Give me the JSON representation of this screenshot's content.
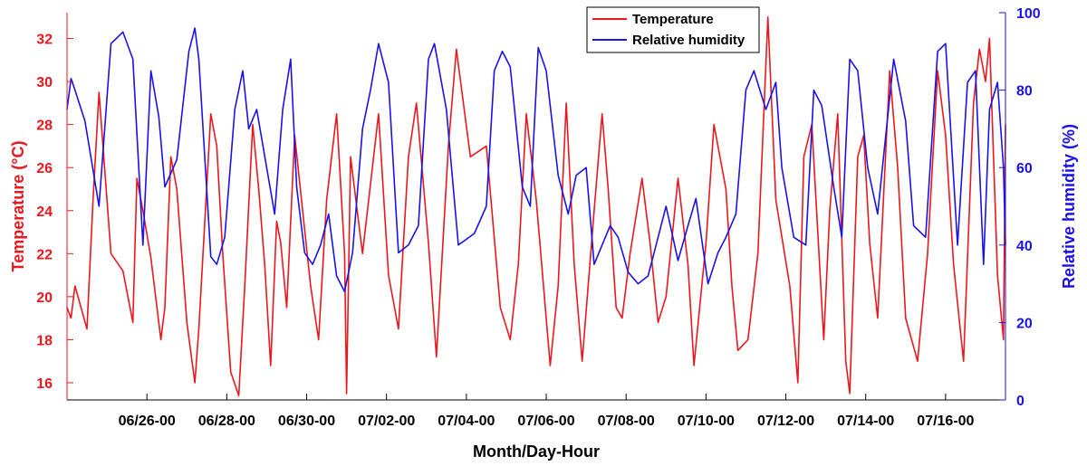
{
  "chart_data": {
    "type": "line",
    "title": "",
    "xlabel": "Month/Day-Hour",
    "ylabel_left": "Temperature (°C)",
    "ylabel_right": "Relative humidity (%)",
    "x_tick_labels": [
      "06/26-00",
      "06/28-00",
      "06/30-00",
      "07/02-00",
      "07/04-00",
      "07/06-00",
      "07/08-00",
      "07/10-00",
      "07/12-00",
      "07/14-00",
      "07/16-00"
    ],
    "x_ticks_day": [
      2,
      4,
      6,
      8,
      10,
      12,
      14,
      16,
      18,
      20,
      22
    ],
    "xlim_day": [
      0,
      23.5
    ],
    "x_unit": "days since 06/24-00",
    "ylim_left": [
      15.2,
      33.2
    ],
    "yticks_left": [
      16,
      18,
      20,
      22,
      24,
      26,
      28,
      30,
      32
    ],
    "ylim_right": [
      0,
      100
    ],
    "yticks_right": [
      0,
      20,
      40,
      60,
      80,
      100
    ],
    "grid": false,
    "legend_position": "top-center",
    "colors": {
      "left_axis": "#e8181e",
      "right_axis": "#1a12e6",
      "axis": "#000000"
    },
    "series": [
      {
        "name": "Temperature",
        "axis": "left",
        "color": "#e8181e",
        "x_day": [
          0,
          0.1,
          0.2,
          0.5,
          0.65,
          0.8,
          1.1,
          1.4,
          1.65,
          1.75,
          1.9,
          2.1,
          2.35,
          2.45,
          2.6,
          2.75,
          3.0,
          3.2,
          3.3,
          3.6,
          3.75,
          3.9,
          4.1,
          4.3,
          4.45,
          4.65,
          4.8,
          4.95,
          5.1,
          5.25,
          5.35,
          5.5,
          5.7,
          6.1,
          6.3,
          6.5,
          6.75,
          6.95,
          7.0,
          7.1,
          7.4,
          7.8,
          8.05,
          8.3,
          8.55,
          8.75,
          9.05,
          9.25,
          9.55,
          9.75,
          10.1,
          10.5,
          10.85,
          11.1,
          11.3,
          11.5,
          11.75,
          12.1,
          12.3,
          12.5,
          12.7,
          12.9,
          13.2,
          13.4,
          13.55,
          13.75,
          13.9,
          14.1,
          14.4,
          14.6,
          14.8,
          15.0,
          15.3,
          15.55,
          15.7,
          16.0,
          16.2,
          16.5,
          16.65,
          16.8,
          17.05,
          17.3,
          17.55,
          17.75,
          18.1,
          18.3,
          18.45,
          18.65,
          18.8,
          18.95,
          19.1,
          19.3,
          19.5,
          19.6,
          19.8,
          19.95,
          20.1,
          20.3,
          20.6,
          20.8,
          21.0,
          21.3,
          21.55,
          21.8,
          22.0,
          22.2,
          22.45,
          22.7,
          22.85,
          23.0,
          23.1,
          23.3,
          23.45,
          23.5
        ],
        "y_value": [
          19.5,
          19.0,
          20.5,
          18.5,
          24.5,
          29.5,
          22.0,
          21.2,
          18.8,
          25.5,
          24.0,
          21.8,
          18.0,
          19.5,
          26.5,
          25.0,
          18.8,
          16.0,
          18.5,
          28.5,
          27.0,
          22.0,
          16.5,
          15.4,
          20.5,
          28.0,
          25.0,
          21.5,
          16.8,
          23.5,
          22.5,
          19.5,
          27.5,
          20.5,
          18.0,
          24.5,
          28.5,
          22.0,
          15.5,
          26.5,
          22.0,
          28.5,
          21.0,
          18.5,
          26.5,
          29.0,
          22.5,
          17.2,
          27.0,
          31.5,
          26.5,
          27.0,
          19.5,
          18.0,
          21.5,
          28.5,
          24.5,
          16.8,
          20.5,
          29.0,
          21.5,
          17.0,
          24.0,
          28.5,
          25.0,
          19.5,
          19.0,
          22.0,
          25.5,
          22.5,
          18.8,
          20.0,
          25.5,
          21.5,
          16.8,
          22.5,
          28.0,
          25.0,
          20.5,
          17.5,
          18.0,
          22.0,
          33.0,
          24.5,
          20.5,
          16.0,
          26.5,
          28.0,
          23.0,
          18.0,
          24.0,
          28.5,
          17.0,
          15.5,
          26.5,
          27.5,
          22.5,
          19.0,
          30.5,
          26.0,
          19.0,
          17.0,
          22.0,
          30.5,
          27.5,
          21.5,
          17.0,
          29.0,
          31.5,
          30.0,
          32.0,
          21.0,
          18.0,
          28.0
        ]
      },
      {
        "name": "Relative humidity",
        "axis": "right",
        "color": "#1a12e6",
        "x_day": [
          0,
          0.1,
          0.2,
          0.45,
          0.8,
          1.1,
          1.4,
          1.65,
          1.9,
          2.1,
          2.3,
          2.45,
          2.75,
          3.05,
          3.2,
          3.3,
          3.6,
          3.75,
          3.95,
          4.2,
          4.4,
          4.55,
          4.75,
          5.0,
          5.2,
          5.4,
          5.6,
          5.75,
          5.95,
          6.15,
          6.35,
          6.55,
          6.75,
          6.95,
          7.15,
          7.4,
          7.6,
          7.8,
          8.05,
          8.3,
          8.55,
          8.8,
          9.05,
          9.2,
          9.5,
          9.8,
          10.2,
          10.5,
          10.7,
          10.9,
          11.1,
          11.4,
          11.6,
          11.8,
          12.0,
          12.3,
          12.55,
          12.75,
          13.0,
          13.2,
          13.4,
          13.6,
          13.8,
          14.05,
          14.3,
          14.55,
          14.75,
          15.0,
          15.3,
          15.55,
          15.75,
          16.05,
          16.3,
          16.5,
          16.75,
          17.0,
          17.2,
          17.5,
          17.75,
          17.9,
          18.2,
          18.5,
          18.7,
          18.9,
          19.2,
          19.4,
          19.6,
          19.8,
          20.05,
          20.3,
          20.5,
          20.7,
          21.0,
          21.2,
          21.5,
          21.8,
          22.0,
          22.3,
          22.55,
          22.75,
          22.95,
          23.1,
          23.3,
          23.45,
          23.5
        ],
        "y_value": [
          75.0,
          83.0,
          80.0,
          72.0,
          50.0,
          92.0,
          95.0,
          88.0,
          40.0,
          85.0,
          73.0,
          55.0,
          62.0,
          90.0,
          96.0,
          88.0,
          37.0,
          35.0,
          42.0,
          75.0,
          85.0,
          70.0,
          75.0,
          60.0,
          48.0,
          75.0,
          88.0,
          55.0,
          38.0,
          35.0,
          40.0,
          48.0,
          32.0,
          28.0,
          38.0,
          70.0,
          80.0,
          92.0,
          82.0,
          38.0,
          40.0,
          45.0,
          88.0,
          92.0,
          75.0,
          40.0,
          43.0,
          50.0,
          85.0,
          90.0,
          86.0,
          55.0,
          50.0,
          91.0,
          85.0,
          58.0,
          48.0,
          58.0,
          60.0,
          35.0,
          40.0,
          45.0,
          42.0,
          33.0,
          30.0,
          32.0,
          40.0,
          50.0,
          36.0,
          45.0,
          52.0,
          30.0,
          38.0,
          42.0,
          48.0,
          80.0,
          85.0,
          75.0,
          82.0,
          60.0,
          42.0,
          40.0,
          80.0,
          76.0,
          55.0,
          42.0,
          88.0,
          85.0,
          60.0,
          48.0,
          68.0,
          88.0,
          72.0,
          45.0,
          42.0,
          90.0,
          92.0,
          40.0,
          82.0,
          85.0,
          35.0,
          75.0,
          82.0,
          60.0,
          40.0
        ]
      }
    ]
  }
}
